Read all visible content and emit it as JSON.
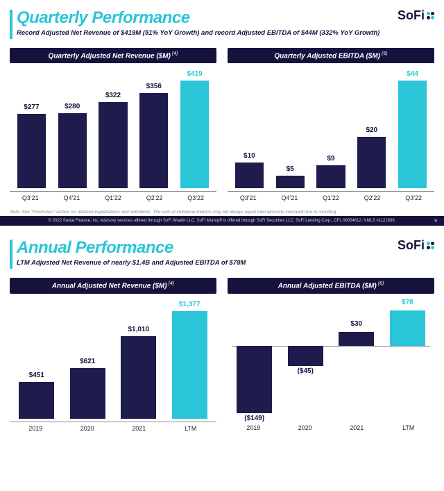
{
  "brand": {
    "name": "SoFi",
    "dot_color": "#2bc5d8",
    "text_color": "#15133d"
  },
  "colors": {
    "accent": "#2bc5d8",
    "dark": "#15133d",
    "highlight_bar": "#2bc5d8",
    "normal_bar": "#1e1b4d"
  },
  "slide1": {
    "title": "Quarterly Performance",
    "subtitle": "Record Adjusted Net Revenue of $419M (51% YoY Growth) and record Adjusted EBITDA of $44M (332% YoY Growth)",
    "page": "9",
    "footnote": "Note: See \"Footnotes\" section for detailed explanations and definitions. The sum of individual metrics may not always equal total amounts indicated due to rounding.",
    "copyright": "© 2022 Social Finance, Inc. Advisory services offered through SoFi Wealth LLC. SoFi Money® is offered through SoFi Securities LLC. SoFi Lending Corp., CFL #6054612. NMLS #1121636.",
    "chart_rev": {
      "title": "Quarterly Adjusted Net Revenue ($M)",
      "sup": "(4)",
      "type": "bar",
      "categories": [
        "Q3'21",
        "Q4'21",
        "Q1'22",
        "Q2'22",
        "Q3'22"
      ],
      "values": [
        277,
        280,
        322,
        356,
        419
      ],
      "labels": [
        "$277",
        "$280",
        "$322",
        "$356",
        "$419"
      ],
      "highlight_index": 4,
      "ymax": 440
    },
    "chart_ebitda": {
      "title": "Quarterly Adjusted EBITDA ($M)",
      "sup": "(6)",
      "type": "bar",
      "categories": [
        "Q3'21",
        "Q4'21",
        "Q1'22",
        "Q2'22",
        "Q3'22"
      ],
      "values": [
        10,
        5,
        9,
        20,
        44
      ],
      "labels": [
        "$10",
        "$5",
        "$9",
        "$20",
        "$44"
      ],
      "highlight_index": 4,
      "ymax": 46
    }
  },
  "slide2": {
    "title": "Annual Performance",
    "subtitle": "LTM Adjusted Net Revenue of nearly $1.4B and Adjusted EBITDA of $78M",
    "chart_rev": {
      "title": "Annual Adjusted Net Revenue ($M)",
      "sup": "(4)",
      "type": "bar",
      "categories": [
        "2019",
        "2020",
        "2021",
        "LTM"
      ],
      "values": [
        451,
        621,
        1010,
        1377
      ],
      "labels": [
        "$451",
        "$621",
        "$1,010",
        "$1,377"
      ],
      "highlight_index": 3,
      "ymax": 1450
    },
    "chart_ebitda": {
      "title": "Annual Adjusted EBITDA ($M)",
      "sup": "(6)",
      "type": "bar-neg",
      "categories": [
        "2019",
        "2020",
        "2021",
        "LTM"
      ],
      "values": [
        -149,
        -45,
        30,
        78
      ],
      "labels": [
        "($149)",
        "($45)",
        "$30",
        "$78"
      ],
      "highlight_index": 3,
      "ymin": -160,
      "ymax": 100
    }
  }
}
